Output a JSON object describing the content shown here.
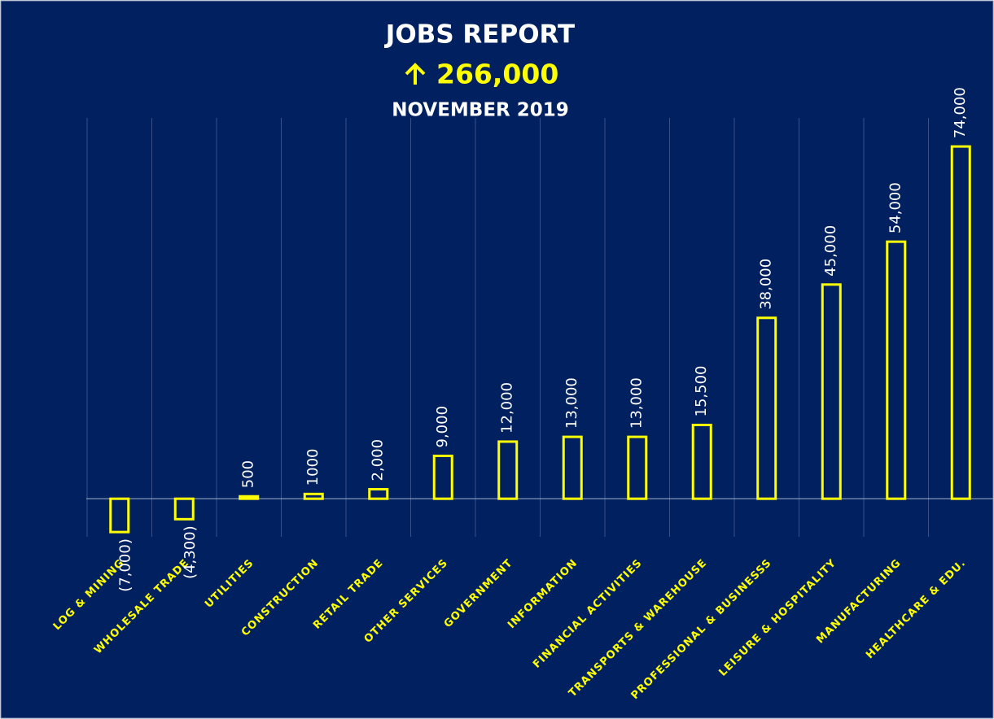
{
  "chart_data": {
    "type": "bar",
    "title": "JOBS REPORT",
    "headline": "266,000",
    "subtitle": "NOVEMBER 2019",
    "categories": [
      "LOG & MINING",
      "WHOLESALE TRADE",
      "UTILITIES",
      "CONSTRUCTION",
      "RETAIL TRADE",
      "OTHER SERVICES",
      "GOVERNMENT",
      "INFORMATION",
      "FINANCIAL ACTIVITIES",
      "TRANSPORTS & WAREHOUSE",
      "PROFESSIONAL & BUSINESSS",
      "LEISURE & HOSPITALITY",
      "MANUFACTURING",
      "HEALTHCARE & EDU."
    ],
    "values": [
      -7000,
      -4300,
      500,
      1000,
      2000,
      9000,
      12000,
      13000,
      13000,
      15500,
      38000,
      45000,
      54000,
      74000
    ],
    "value_labels": [
      "(7,000)",
      "(4,300)",
      "500",
      "1000",
      "2,000",
      "9,000",
      "12,000",
      "13,000",
      "13,000",
      "15,500",
      "38,000",
      "45,000",
      "54,000",
      "74,000"
    ],
    "color": "#ffff00",
    "ylim": [
      -8000,
      80000
    ]
  }
}
